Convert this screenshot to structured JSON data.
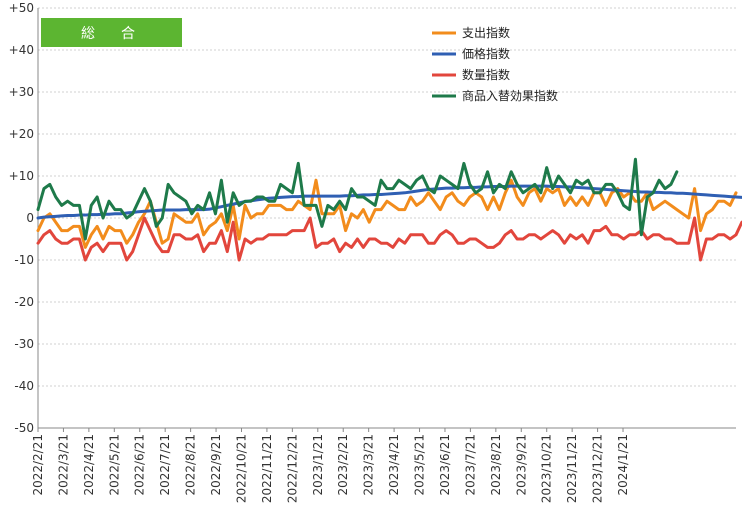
{
  "chart_data": {
    "type": "line",
    "label_box": {
      "text": "総　合",
      "color": "#5cb531"
    },
    "ylim": [
      -50,
      50
    ],
    "y_ticks": [
      {
        "value": 50,
        "label": "+50"
      },
      {
        "value": 40,
        "label": "+40"
      },
      {
        "value": 30,
        "label": "+30"
      },
      {
        "value": 20,
        "label": "+20"
      },
      {
        "value": 10,
        "label": "+10"
      },
      {
        "value": 0,
        "label": "0"
      },
      {
        "value": -10,
        "label": "-10"
      },
      {
        "value": -20,
        "label": "-20"
      },
      {
        "value": -30,
        "label": "-30"
      },
      {
        "value": -40,
        "label": "-40"
      },
      {
        "value": -50,
        "label": "-50"
      }
    ],
    "x_tick_labels": [
      "2022/2/21",
      "2022/3/21",
      "2022/4/21",
      "2022/5/21",
      "2022/6/21",
      "2022/7/21",
      "2022/8/21",
      "2022/9/21",
      "2022/10/21",
      "2022/11/21",
      "2022/12/21",
      "2023/1/21",
      "2023/2/21",
      "2023/3/21",
      "2023/4/21",
      "2023/5/21",
      "2023/6/21",
      "2023/7/21",
      "2023/8/21",
      "2023/9/21",
      "2023/10/21",
      "2023/11/21",
      "2023/12/21",
      "2024/1/21"
    ],
    "points_per_tick": 4.3,
    "grid": true,
    "legend_position": "top-right",
    "series": [
      {
        "name": "支出指数",
        "color": "#f28c1c",
        "values": [
          -3,
          0,
          1,
          -1,
          -3,
          -3,
          -2,
          -2,
          -7,
          -4,
          -2,
          -5,
          -2,
          -3,
          -3,
          -6,
          -4,
          -1,
          1,
          4,
          -1,
          -6,
          -5,
          1,
          0,
          -1,
          -1,
          1,
          -4,
          -2,
          -1,
          1,
          -3,
          3,
          -5,
          3,
          0,
          1,
          1,
          3,
          3,
          3,
          2,
          2,
          4,
          3,
          2,
          9,
          1,
          1,
          1,
          3,
          -3,
          1,
          0,
          2,
          -1,
          2,
          2,
          4,
          3,
          2,
          2,
          5,
          3,
          4,
          6,
          4,
          2,
          5,
          6,
          4,
          3,
          5,
          6,
          5,
          2,
          5,
          2,
          6,
          9,
          5,
          3,
          6,
          7,
          4,
          7,
          6,
          7,
          3,
          5,
          3,
          5,
          3,
          6,
          6,
          3,
          6,
          7,
          5,
          6,
          4,
          4,
          6,
          2,
          3,
          4,
          3,
          2,
          1,
          0,
          7,
          -3,
          1,
          2,
          4,
          4,
          3,
          6
        ]
      },
      {
        "name": "価格指数",
        "color": "#2f5fb3",
        "values": [
          0,
          0.2,
          0.3,
          0.4,
          0.5,
          0.6,
          0.6,
          0.7,
          0.7,
          0.8,
          0.8,
          0.9,
          0.9,
          1,
          1,
          1.2,
          1.3,
          1.5,
          1.6,
          1.7,
          1.8,
          1.9,
          1.9,
          1.9,
          1.9,
          2,
          2,
          2,
          2,
          2.1,
          2.4,
          2.7,
          3,
          3.3,
          3.6,
          3.9,
          4.1,
          4.3,
          4.5,
          4.7,
          4.8,
          4.9,
          5,
          5.1,
          5.1,
          5.2,
          5.2,
          5.2,
          5.2,
          5.2,
          5.2,
          5.2,
          5.3,
          5.3,
          5.4,
          5.5,
          5.5,
          5.6,
          5.6,
          5.7,
          5.8,
          5.9,
          6,
          6.2,
          6.4,
          6.6,
          6.8,
          6.9,
          7,
          7.1,
          7.1,
          7.2,
          7.2,
          7.3,
          7.3,
          7.4,
          7.4,
          7.5,
          7.5,
          7.5,
          7.6,
          7.6,
          7.6,
          7.6,
          7.6,
          7.6,
          7.6,
          7.5,
          7.5,
          7.4,
          7.4,
          7.3,
          7.2,
          7.1,
          7,
          6.9,
          6.8,
          6.7,
          6.6,
          6.5,
          6.4,
          6.3,
          6.2,
          6.2,
          6.1,
          6.1,
          6,
          6,
          5.9,
          5.9,
          5.8,
          5.7,
          5.6,
          5.5,
          5.4,
          5.3,
          5.2,
          5.1,
          5,
          4.9
        ]
      },
      {
        "name": "数量指数",
        "color": "#e2463c",
        "values": [
          -6,
          -4,
          -3,
          -5,
          -6,
          -6,
          -5,
          -5,
          -10,
          -7,
          -6,
          -8,
          -6,
          -6,
          -6,
          -10,
          -8,
          -4,
          0,
          -3,
          -6,
          -8,
          -8,
          -4,
          -4,
          -5,
          -5,
          -4,
          -8,
          -6,
          -6,
          -3,
          -8,
          -1,
          -10,
          -5,
          -6,
          -5,
          -5,
          -4,
          -4,
          -4,
          -4,
          -3,
          -3,
          -3,
          0,
          -7,
          -6,
          -6,
          -5,
          -8,
          -6,
          -7,
          -5,
          -7,
          -5,
          -5,
          -6,
          -6,
          -7,
          -5,
          -6,
          -4,
          -4,
          -4,
          -6,
          -6,
          -4,
          -3,
          -4,
          -6,
          -6,
          -5,
          -5,
          -6,
          -7,
          -7,
          -6,
          -4,
          -3,
          -5,
          -5,
          -4,
          -4,
          -5,
          -4,
          -3,
          -4,
          -6,
          -4,
          -5,
          -4,
          -6,
          -3,
          -3,
          -2,
          -4,
          -4,
          -5,
          -4,
          -4,
          -3,
          -5,
          -4,
          -4,
          -5,
          -5,
          -6,
          -6,
          -6,
          0,
          -10,
          -5,
          -5,
          -4,
          -4,
          -5,
          -4,
          -1
        ]
      },
      {
        "name": "商品入替効果指数",
        "color": "#1e7a4a",
        "values": [
          2,
          7,
          8,
          5,
          3,
          4,
          3,
          3,
          -5,
          3,
          5,
          0,
          4,
          2,
          2,
          0,
          1,
          4,
          7,
          4,
          -2,
          0,
          8,
          6,
          5,
          4,
          1,
          3,
          2,
          6,
          1,
          9,
          -1,
          6,
          3,
          4,
          4,
          5,
          5,
          4,
          4,
          8,
          7,
          6,
          13,
          3,
          3,
          3,
          -2,
          3,
          2,
          4,
          2,
          7,
          5,
          5,
          4,
          3,
          9,
          7,
          7,
          9,
          8,
          7,
          9,
          10,
          7,
          6,
          10,
          9,
          8,
          7,
          13,
          8,
          6,
          7,
          11,
          6,
          8,
          7,
          11,
          8,
          6,
          7,
          8,
          6,
          12,
          7,
          10,
          8,
          6,
          9,
          8,
          9,
          6,
          6,
          8,
          8,
          6,
          3,
          2,
          14,
          -4,
          5,
          6,
          9,
          7,
          8,
          11
        ]
      }
    ]
  }
}
